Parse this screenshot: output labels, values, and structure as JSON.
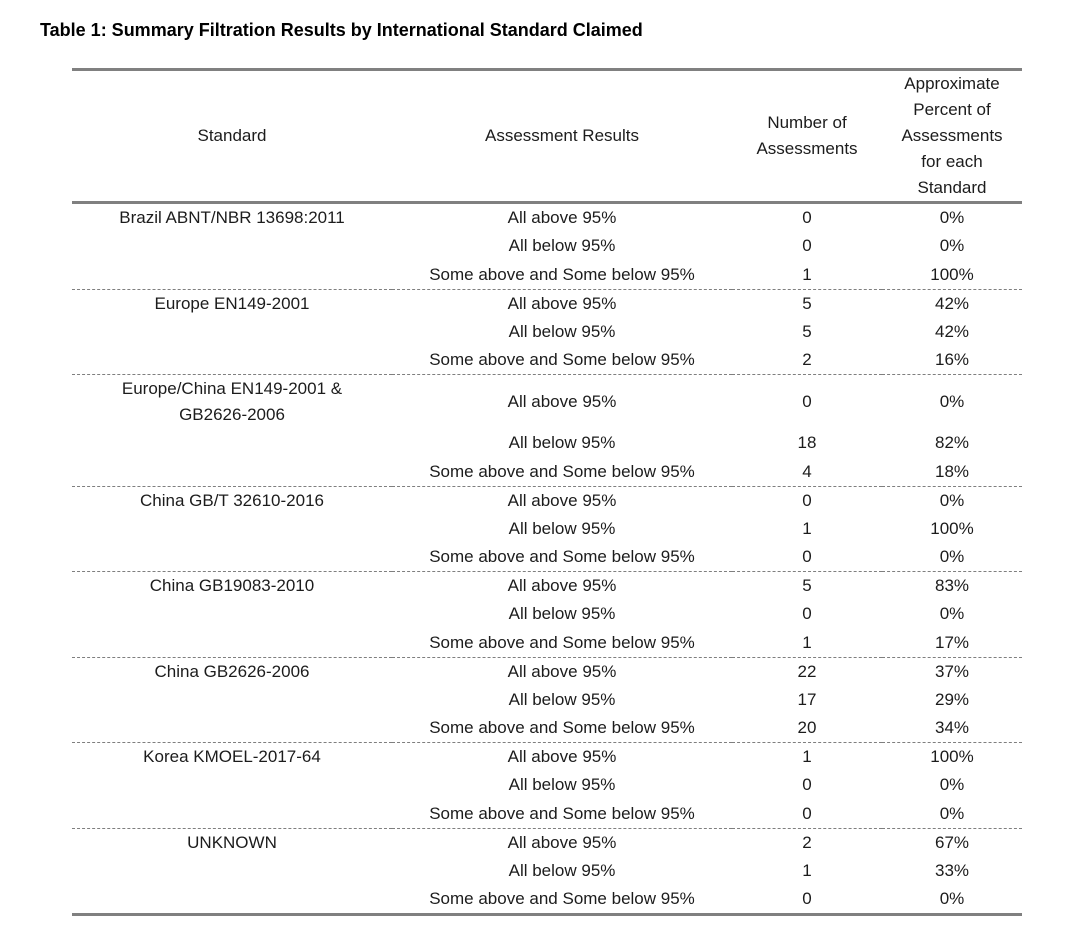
{
  "title": "Table 1: Summary Filtration Results by International Standard Claimed",
  "colors": {
    "border": "#808080",
    "separator": "#7f7f7f",
    "text": "#1c1c1c"
  },
  "table": {
    "headers": [
      "Standard",
      "Assessment Results",
      "Number of Assessments",
      "Approximate Percent of Assessments for each Standard"
    ],
    "groups": [
      {
        "standard": "Brazil ABNT/NBR 13698:2011",
        "rows": [
          {
            "result": "All above 95%",
            "count": "0",
            "percent": "0%"
          },
          {
            "result": "All below 95%",
            "count": "0",
            "percent": "0%"
          },
          {
            "result": "Some above and Some below 95%",
            "count": "1",
            "percent": "100%"
          }
        ]
      },
      {
        "standard": "Europe EN149-2001",
        "rows": [
          {
            "result": "All above 95%",
            "count": "5",
            "percent": "42%"
          },
          {
            "result": "All below 95%",
            "count": "5",
            "percent": "42%"
          },
          {
            "result": "Some above and Some below 95%",
            "count": "2",
            "percent": "16%"
          }
        ]
      },
      {
        "standard": "Europe/China EN149-2001 & GB2626-2006",
        "rows": [
          {
            "result": "All above 95%",
            "count": "0",
            "percent": "0%"
          },
          {
            "result": "All below 95%",
            "count": "18",
            "percent": "82%"
          },
          {
            "result": "Some above and Some below 95%",
            "count": "4",
            "percent": "18%"
          }
        ]
      },
      {
        "standard": "China GB/T 32610-2016",
        "rows": [
          {
            "result": "All above 95%",
            "count": "0",
            "percent": "0%"
          },
          {
            "result": "All below 95%",
            "count": "1",
            "percent": "100%"
          },
          {
            "result": "Some above and Some below 95%",
            "count": "0",
            "percent": "0%"
          }
        ]
      },
      {
        "standard": "China GB19083-2010",
        "rows": [
          {
            "result": "All above 95%",
            "count": "5",
            "percent": "83%"
          },
          {
            "result": "All below 95%",
            "count": "0",
            "percent": "0%"
          },
          {
            "result": "Some above and Some below 95%",
            "count": "1",
            "percent": "17%"
          }
        ]
      },
      {
        "standard": "China GB2626-2006",
        "rows": [
          {
            "result": "All above 95%",
            "count": "22",
            "percent": "37%"
          },
          {
            "result": "All below 95%",
            "count": "17",
            "percent": "29%"
          },
          {
            "result": "Some above and Some below 95%",
            "count": "20",
            "percent": "34%"
          }
        ]
      },
      {
        "standard": "Korea KMOEL-2017-64",
        "rows": [
          {
            "result": "All above 95%",
            "count": "1",
            "percent": "100%"
          },
          {
            "result": "All below 95%",
            "count": "0",
            "percent": "0%"
          },
          {
            "result": "Some above and Some below 95%",
            "count": "0",
            "percent": "0%"
          }
        ]
      },
      {
        "standard": "UNKNOWN",
        "rows": [
          {
            "result": "All above 95%",
            "count": "2",
            "percent": "67%"
          },
          {
            "result": "All below 95%",
            "count": "1",
            "percent": "33%"
          },
          {
            "result": "Some above and Some below 95%",
            "count": "0",
            "percent": "0%"
          }
        ]
      }
    ]
  }
}
